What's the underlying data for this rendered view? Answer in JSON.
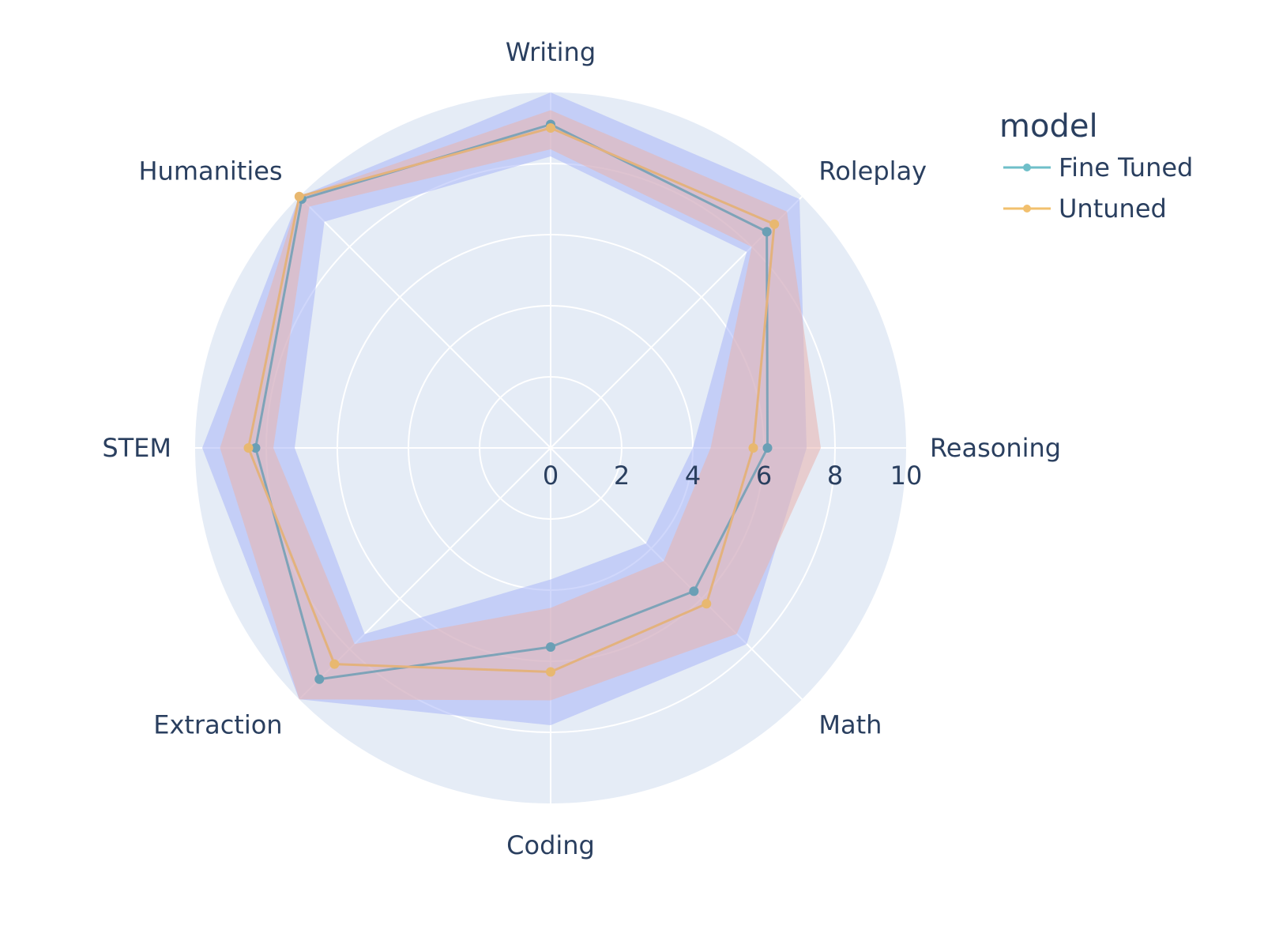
{
  "chart_data": {
    "type": "radar",
    "axes": [
      "Writing",
      "Roleplay",
      "Reasoning",
      "Math",
      "Coding",
      "Extraction",
      "STEM",
      "Humanities"
    ],
    "radial_range": [
      0,
      10
    ],
    "radial_ticks": [
      "0",
      "2",
      "4",
      "6",
      "8",
      "10"
    ],
    "legend": {
      "title": "model",
      "placement": "top-right"
    },
    "series": [
      {
        "name": "Fine Tuned",
        "color": "#6fbfc9",
        "marker_color": "#6a9fb5",
        "values": [
          9.1,
          8.6,
          6.1,
          5.7,
          5.6,
          9.2,
          8.3,
          9.9
        ],
        "band_lower": [
          8.2,
          7.8,
          4.0,
          3.8,
          3.7,
          7.4,
          7.2,
          9.0
        ],
        "band_upper": [
          10.0,
          9.9,
          7.2,
          7.8,
          7.8,
          10.0,
          9.8,
          10.0
        ],
        "band_color": "#aab6f7"
      },
      {
        "name": "Untuned",
        "color": "#f2c06e",
        "marker_color": "#e8b870",
        "values": [
          9.0,
          8.9,
          5.7,
          6.2,
          6.3,
          8.6,
          8.5,
          10.0
        ],
        "band_lower": [
          8.4,
          8.0,
          4.5,
          4.5,
          4.5,
          7.8,
          7.8,
          9.6
        ],
        "band_upper": [
          9.5,
          9.4,
          7.6,
          7.4,
          7.1,
          10.0,
          9.3,
          10.0
        ],
        "band_color": "#e9b3ad"
      }
    ]
  }
}
